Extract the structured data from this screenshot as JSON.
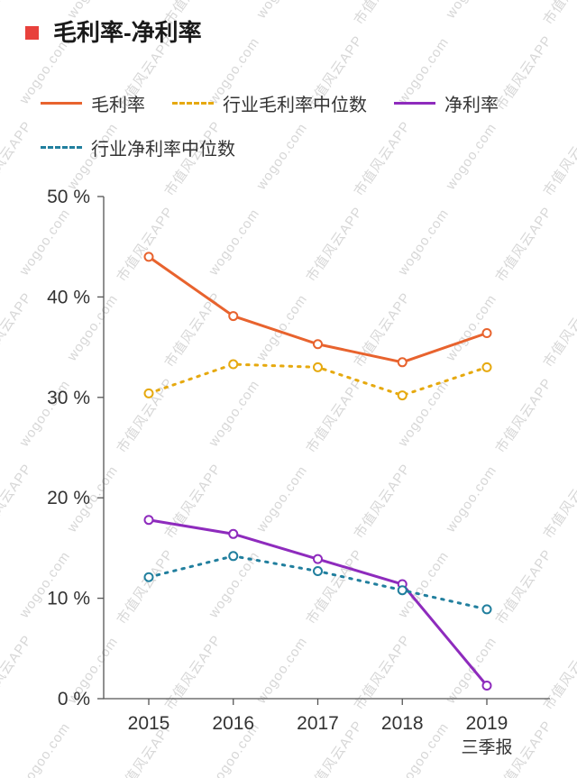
{
  "title": "毛利率-净利率",
  "watermarks": [
    "市值风云APP",
    "wogoo.com"
  ],
  "chart_data": {
    "type": "line",
    "title": "毛利率-净利率",
    "categories": [
      "2015",
      "2016",
      "2017",
      "2018",
      "2019"
    ],
    "x_sub_label": "三季报",
    "series": [
      {
        "name": "毛利率",
        "color": "#e8632e",
        "style": "solid",
        "values": [
          44.0,
          38.1,
          35.3,
          33.5,
          36.4
        ]
      },
      {
        "name": "行业毛利率中位数",
        "color": "#e6a90f",
        "style": "dotted",
        "values": [
          30.4,
          33.3,
          33.0,
          30.2,
          33.0
        ]
      },
      {
        "name": "净利率",
        "color": "#8e2bbd",
        "style": "solid",
        "values": [
          17.8,
          16.4,
          13.9,
          11.4,
          1.3
        ]
      },
      {
        "name": "行业净利率中位数",
        "color": "#217f9e",
        "style": "dotted",
        "values": [
          12.1,
          14.2,
          12.7,
          10.8,
          8.9
        ]
      }
    ],
    "ylim": [
      0,
      50
    ],
    "ytick_step": 10,
    "ytick_suffix": " %",
    "grid": false,
    "legend_position": "top",
    "axis_color": "#555555",
    "tick_label_color": "#333333"
  }
}
